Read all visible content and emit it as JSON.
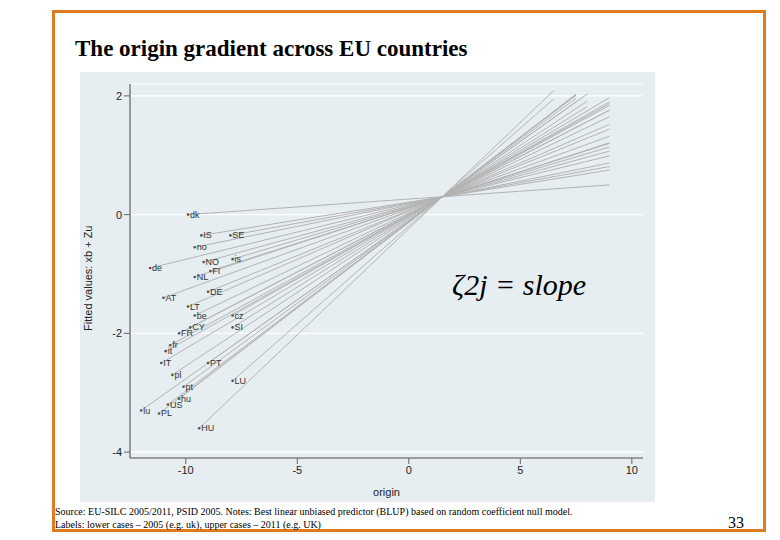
{
  "chart_data": {
    "type": "line",
    "title": "The origin gradient across EU countries",
    "x_label": "origin",
    "y_label": "Fitted values: xb + Zu",
    "annotation": "ζ2j = slope",
    "notes": [
      "Source: EU-SILC 2005/2011, PSID 2005. Notes: Best linear unbiased predictor (BLUP) based on random coefficient null model.",
      "Labels: lower cases – 2005 (e.g. uk), upper cases – 2011 (e.g. UK)"
    ],
    "page": 33,
    "xlim": [
      -12.5,
      10.5
    ],
    "xticks": [
      -10,
      -5,
      0,
      5,
      10
    ],
    "ylim": [
      -4.1,
      2.2
    ],
    "yticks": [
      -4,
      -2,
      0,
      2
    ],
    "grid": true,
    "color": "#b3b3b3",
    "marker": "circle",
    "series": [
      {
        "name": "dk",
        "x": [
          -9.9,
          9
        ],
        "values": [
          0.0,
          0.5
        ]
      },
      {
        "name": "IS",
        "x": [
          -9.3,
          9
        ],
        "values": [
          -0.35,
          0.75
        ]
      },
      {
        "name": "SE",
        "x": [
          -8.0,
          9
        ],
        "values": [
          -0.35,
          0.81
        ]
      },
      {
        "name": "no",
        "x": [
          -9.6,
          9
        ],
        "values": [
          -0.55,
          0.87
        ]
      },
      {
        "name": "NO",
        "x": [
          -9.2,
          9
        ],
        "values": [
          -0.8,
          1.07
        ]
      },
      {
        "name": "is",
        "x": [
          -7.9,
          9
        ],
        "values": [
          -0.75,
          1.14
        ]
      },
      {
        "name": "de",
        "x": [
          -11.6,
          9
        ],
        "values": [
          -0.9,
          0.99
        ]
      },
      {
        "name": "FI",
        "x": [
          -8.9,
          9
        ],
        "values": [
          -0.95,
          1.2
        ]
      },
      {
        "name": "NL",
        "x": [
          -9.6,
          9
        ],
        "values": [
          -1.05,
          1.21
        ]
      },
      {
        "name": "AT",
        "x": [
          -11.0,
          9
        ],
        "values": [
          -1.4,
          1.32
        ]
      },
      {
        "name": "DE",
        "x": [
          -9.0,
          9
        ],
        "values": [
          -1.3,
          1.44
        ]
      },
      {
        "name": "LT",
        "x": [
          -9.9,
          9
        ],
        "values": [
          -1.55,
          1.52
        ]
      },
      {
        "name": "be",
        "x": [
          -9.6,
          9
        ],
        "values": [
          -1.7,
          1.65
        ]
      },
      {
        "name": "cz",
        "x": [
          -7.9,
          9
        ],
        "values": [
          -1.7,
          1.9
        ]
      },
      {
        "name": "CY",
        "x": [
          -9.8,
          9
        ],
        "values": [
          -1.9,
          1.76
        ]
      },
      {
        "name": "SI",
        "x": [
          -7.9,
          8
        ],
        "values": [
          -1.9,
          1.82
        ]
      },
      {
        "name": "FR",
        "x": [
          -10.3,
          9
        ],
        "values": [
          -2.0,
          1.76
        ]
      },
      {
        "name": "fr",
        "x": [
          -10.7,
          9
        ],
        "values": [
          -2.2,
          1.84
        ]
      },
      {
        "name": "it",
        "x": [
          -10.9,
          9
        ],
        "values": [
          -2.3,
          1.87
        ]
      },
      {
        "name": "IT",
        "x": [
          -11.1,
          9
        ],
        "values": [
          -2.5,
          1.97
        ]
      },
      {
        "name": "PT",
        "x": [
          -9.0,
          8
        ],
        "values": [
          -2.5,
          2.03
        ]
      },
      {
        "name": "pl",
        "x": [
          -10.6,
          8
        ],
        "values": [
          -2.7,
          1.91
        ]
      },
      {
        "name": "LU",
        "x": [
          -7.9,
          6.5
        ],
        "values": [
          -2.8,
          1.95
        ]
      },
      {
        "name": "pt",
        "x": [
          -10.1,
          7.5
        ],
        "values": [
          -2.9,
          1.96
        ]
      },
      {
        "name": "hu",
        "x": [
          -10.3,
          7.5
        ],
        "values": [
          -3.1,
          2.03
        ]
      },
      {
        "name": "US",
        "x": [
          -10.8,
          7.5
        ],
        "values": [
          -3.2,
          2.01
        ]
      },
      {
        "name": "lu",
        "x": [
          -12.0,
          7.5
        ],
        "values": [
          -3.3,
          1.9
        ]
      },
      {
        "name": "PL",
        "x": [
          -11.2,
          7.5
        ],
        "values": [
          -3.35,
          2.02
        ]
      },
      {
        "name": "HU",
        "x": [
          -9.4,
          6.5
        ],
        "values": [
          -3.6,
          2.09
        ]
      }
    ]
  }
}
